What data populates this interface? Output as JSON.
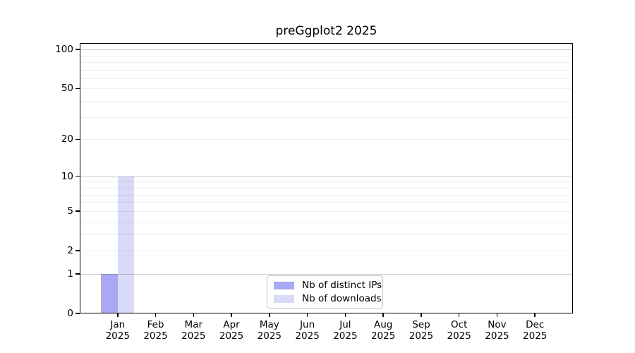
{
  "chart_data": {
    "type": "bar",
    "title": "preGgplot2 2025",
    "categories": [
      "Jan",
      "Feb",
      "Mar",
      "Apr",
      "May",
      "Jun",
      "Jul",
      "Aug",
      "Sep",
      "Oct",
      "Nov",
      "Dec"
    ],
    "year": "2025",
    "series": [
      {
        "name": "Nb of distinct IPs",
        "color": "#a8a8f5",
        "values": [
          1,
          0,
          0,
          0,
          0,
          0,
          0,
          0,
          0,
          0,
          0,
          0
        ]
      },
      {
        "name": "Nb of downloads",
        "color": "#d9d9f8",
        "values": [
          10,
          0,
          0,
          0,
          0,
          0,
          0,
          0,
          0,
          0,
          0,
          0
        ]
      }
    ],
    "y_axis": {
      "scale": "log10(1+v)",
      "ticks": [
        0,
        1,
        2,
        5,
        10,
        20,
        50,
        100
      ],
      "ylim": [
        0,
        112
      ],
      "major_gridlines": [
        1,
        10,
        100
      ],
      "minor_gridlines": [
        2,
        3,
        4,
        5,
        6,
        7,
        8,
        9,
        20,
        30,
        40,
        50,
        60,
        70,
        80,
        90
      ]
    },
    "legend": {
      "position": "lower center",
      "entries": [
        "Nb of distinct IPs",
        "Nb of downloads"
      ]
    },
    "colors": {
      "background": "#ffffff",
      "axis_frame": "#000000",
      "major_grid": "#bdbdbd",
      "minor_grid": "#efefef",
      "legend_border": "#c5c5c5",
      "text": "#000000"
    }
  }
}
